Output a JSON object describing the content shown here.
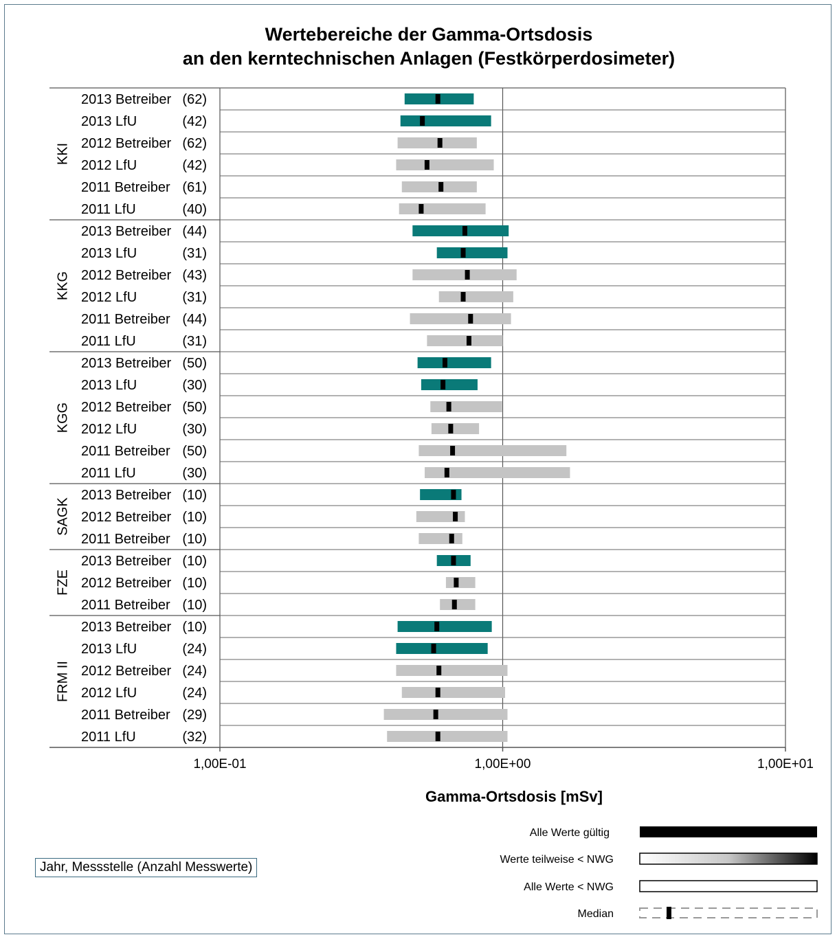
{
  "chart_data": {
    "type": "range-bar",
    "title": [
      "Wertebereiche der Gamma-Ortsdosis",
      "an den kerntechnischen Anlagen (Festkörperdosimeter)"
    ],
    "xlabel": "Gamma-Ortsdosis [mSv]",
    "x_scale": "log",
    "xlim": [
      0.1,
      10
    ],
    "ticks": [
      {
        "value": 0.1,
        "label": "1,00E-01"
      },
      {
        "value": 1,
        "label": "1,00E+00"
      },
      {
        "value": 10,
        "label": "1,00E+01"
      }
    ],
    "colors": {
      "valid": "#0a7a78",
      "partial": "#c4c4c4",
      "median": "#000000"
    },
    "groups": [
      {
        "name": "KKI",
        "rows": [
          {
            "label": "2013 Betreiber",
            "count": "(62)",
            "min": 0.45,
            "max": 0.79,
            "median": 0.59,
            "status": "valid"
          },
          {
            "label": "2013 LfU",
            "count": "(42)",
            "min": 0.435,
            "max": 0.91,
            "median": 0.52,
            "status": "valid"
          },
          {
            "label": "2012 Betreiber",
            "count": "(62)",
            "min": 0.425,
            "max": 0.81,
            "median": 0.6,
            "status": "partial"
          },
          {
            "label": "2012 LfU",
            "count": "(42)",
            "min": 0.42,
            "max": 0.93,
            "median": 0.54,
            "status": "partial"
          },
          {
            "label": "2011 Betreiber",
            "count": "(61)",
            "min": 0.44,
            "max": 0.81,
            "median": 0.605,
            "status": "partial"
          },
          {
            "label": "2011 LfU",
            "count": "(40)",
            "min": 0.43,
            "max": 0.87,
            "median": 0.515,
            "status": "partial"
          }
        ]
      },
      {
        "name": "KKG",
        "rows": [
          {
            "label": "2013 Betreiber",
            "count": "(44)",
            "min": 0.48,
            "max": 1.05,
            "median": 0.735,
            "status": "valid"
          },
          {
            "label": "2013 LfU",
            "count": "(31)",
            "min": 0.585,
            "max": 1.04,
            "median": 0.725,
            "status": "valid"
          },
          {
            "label": "2012 Betreiber",
            "count": "(43)",
            "min": 0.48,
            "max": 1.12,
            "median": 0.75,
            "status": "partial"
          },
          {
            "label": "2012 LfU",
            "count": "(31)",
            "min": 0.595,
            "max": 1.09,
            "median": 0.725,
            "status": "partial"
          },
          {
            "label": "2011 Betreiber",
            "count": "(44)",
            "min": 0.47,
            "max": 1.07,
            "median": 0.77,
            "status": "partial"
          },
          {
            "label": "2011 LfU",
            "count": "(31)",
            "min": 0.54,
            "max": 1.0,
            "median": 0.76,
            "status": "partial"
          }
        ]
      },
      {
        "name": "KGG",
        "rows": [
          {
            "label": "2013 Betreiber",
            "count": "(50)",
            "min": 0.5,
            "max": 0.91,
            "median": 0.625,
            "status": "valid"
          },
          {
            "label": "2013 LfU",
            "count": "(30)",
            "min": 0.515,
            "max": 0.815,
            "median": 0.615,
            "status": "valid"
          },
          {
            "label": "2012 Betreiber",
            "count": "(50)",
            "min": 0.555,
            "max": 0.995,
            "median": 0.645,
            "status": "partial"
          },
          {
            "label": "2012 LfU",
            "count": "(30)",
            "min": 0.56,
            "max": 0.825,
            "median": 0.655,
            "status": "partial"
          },
          {
            "label": "2011 Betreiber",
            "count": "(50)",
            "min": 0.505,
            "max": 1.68,
            "median": 0.665,
            "status": "partial"
          },
          {
            "label": "2011 LfU",
            "count": "(30)",
            "min": 0.53,
            "max": 1.73,
            "median": 0.635,
            "status": "partial"
          }
        ]
      },
      {
        "name": "SAGK",
        "rows": [
          {
            "label": "2013 Betreiber",
            "count": "(10)",
            "min": 0.51,
            "max": 0.715,
            "median": 0.67,
            "status": "valid"
          },
          {
            "label": "2012 Betreiber",
            "count": "(10)",
            "min": 0.495,
            "max": 0.735,
            "median": 0.68,
            "status": "partial"
          },
          {
            "label": "2011 Betreiber",
            "count": "(10)",
            "min": 0.505,
            "max": 0.72,
            "median": 0.66,
            "status": "partial"
          }
        ]
      },
      {
        "name": "FZE",
        "rows": [
          {
            "label": "2013 Betreiber",
            "count": "(10)",
            "min": 0.585,
            "max": 0.77,
            "median": 0.67,
            "status": "valid"
          },
          {
            "label": "2012 Betreiber",
            "count": "(10)",
            "min": 0.63,
            "max": 0.8,
            "median": 0.685,
            "status": "partial"
          },
          {
            "label": "2011 Betreiber",
            "count": "(10)",
            "min": 0.6,
            "max": 0.8,
            "median": 0.675,
            "status": "partial"
          }
        ]
      },
      {
        "name": "FRM II",
        "rows": [
          {
            "label": "2013 Betreiber",
            "count": "(10)",
            "min": 0.425,
            "max": 0.915,
            "median": 0.585,
            "status": "valid"
          },
          {
            "label": "2013 LfU",
            "count": "(24)",
            "min": 0.42,
            "max": 0.885,
            "median": 0.57,
            "status": "valid"
          },
          {
            "label": "2012 Betreiber",
            "count": "(24)",
            "min": 0.42,
            "max": 1.04,
            "median": 0.595,
            "status": "partial"
          },
          {
            "label": "2012 LfU",
            "count": "(24)",
            "min": 0.44,
            "max": 1.02,
            "median": 0.59,
            "status": "partial"
          },
          {
            "label": "2011 Betreiber",
            "count": "(29)",
            "min": 0.38,
            "max": 1.04,
            "median": 0.58,
            "status": "partial"
          },
          {
            "label": "2011 LfU",
            "count": "(32)",
            "min": 0.39,
            "max": 1.04,
            "median": 0.59,
            "status": "partial"
          }
        ]
      }
    ],
    "legend": {
      "position": "bottom-right",
      "items": [
        {
          "key": "valid",
          "label": "Alle Werte gültig"
        },
        {
          "key": "partial",
          "label": "Werte teilweise < NWG"
        },
        {
          "key": "none",
          "label": "Alle Werte < NWG"
        },
        {
          "key": "median",
          "label": "Median"
        }
      ]
    },
    "note": "Jahr, Messstelle (Anzahl Messwerte)"
  }
}
